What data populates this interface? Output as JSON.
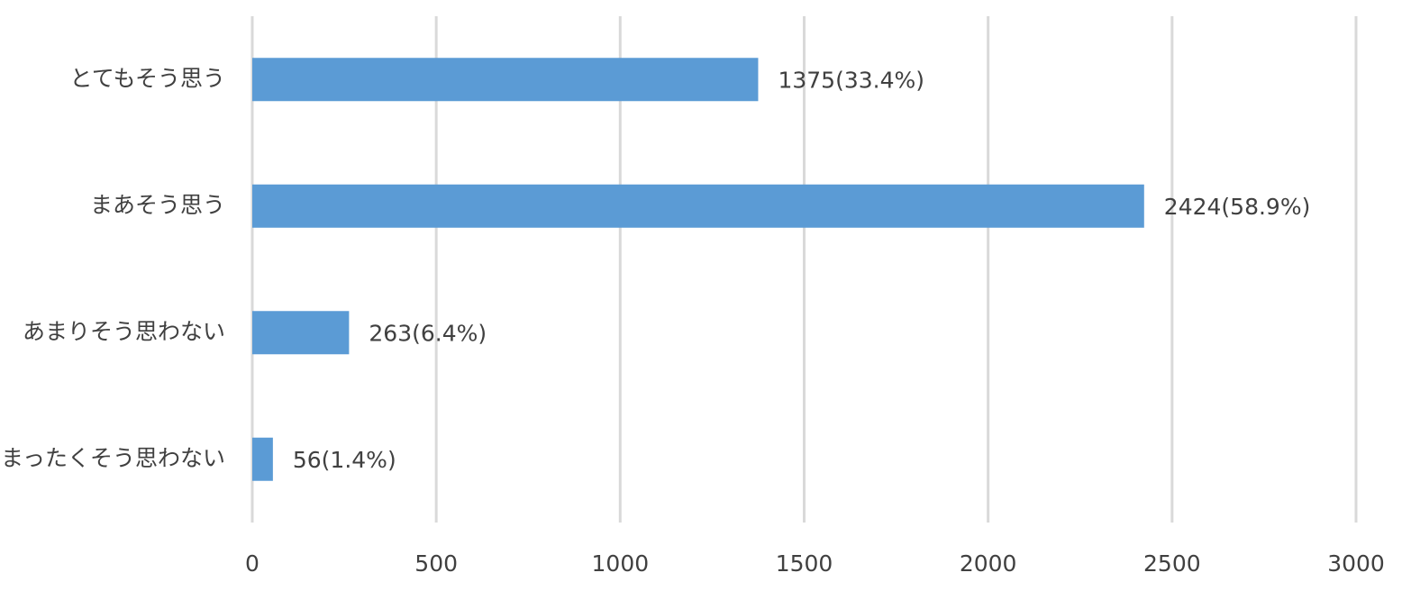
{
  "chart_data": {
    "type": "bar",
    "orientation": "horizontal",
    "categories": [
      "とてもそう思う",
      "まあそう思う",
      "あまりそう思わない",
      "まったくそう思わない"
    ],
    "values": [
      1375,
      2424,
      263,
      56
    ],
    "value_labels": [
      "1375(33.4%)",
      "2424(58.9%)",
      "263(6.4%)",
      "56(1.4%)"
    ],
    "color": "#5b9bd5",
    "xlim": [
      0,
      3000
    ],
    "xticks": [
      0,
      500,
      1000,
      1500,
      2000,
      2500,
      3000
    ],
    "grid": true
  }
}
